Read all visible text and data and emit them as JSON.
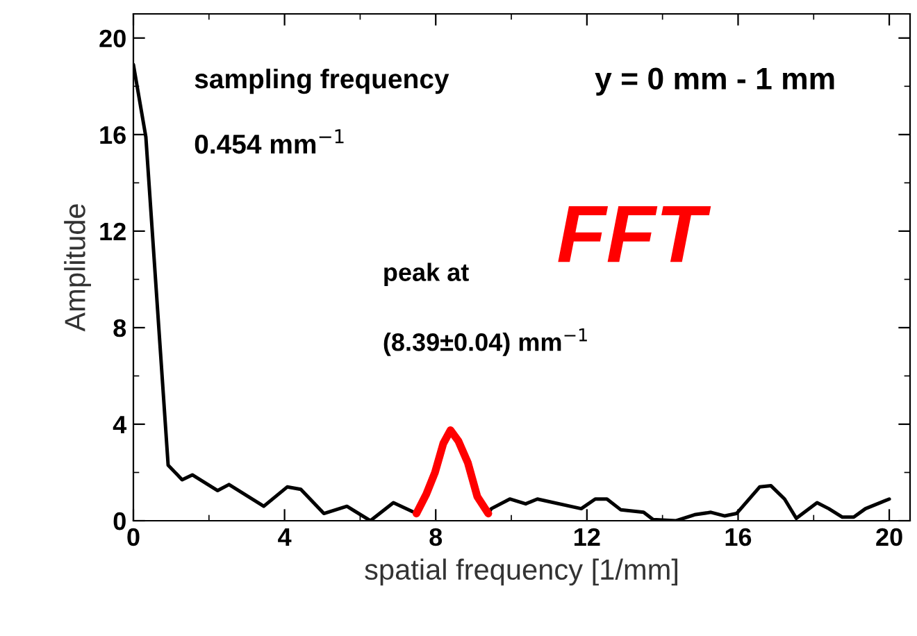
{
  "chart_data": {
    "type": "line",
    "xlabel": "spatial frequency [1/mm]",
    "ylabel": "Amplitude",
    "series": [
      {
        "color": "#000000",
        "x": [
          0,
          0.33,
          0.92,
          1.29,
          1.56,
          2.23,
          2.53,
          3.45,
          4.07,
          4.43,
          5.04,
          5.65,
          6.27,
          6.88,
          7.49,
          null,
          9.39,
          9.47,
          9.96,
          10.38,
          10.69,
          11.85,
          12.22,
          12.53,
          12.9,
          13.5,
          13.75,
          14.36,
          14.85,
          15.28,
          15.65,
          15.96,
          16.57,
          16.87,
          17.23,
          17.54,
          18.09,
          18.4,
          18.76,
          19.06,
          19.37,
          20
        ],
        "values": [
          18.9,
          15.9,
          2.3,
          1.7,
          1.9,
          1.25,
          1.5,
          0.6,
          1.4,
          1.3,
          0.3,
          0.6,
          0,
          0.75,
          0.3,
          null,
          0.3,
          0.5,
          0.9,
          0.7,
          0.9,
          0.5,
          0.9,
          0.9,
          0.45,
          0.35,
          0.05,
          0,
          0.25,
          0.35,
          0.2,
          0.3,
          1.4,
          1.45,
          0.9,
          0.1,
          0.75,
          0.5,
          0.15,
          0.15,
          0.5,
          0.9
        ]
      },
      {
        "color": "#ff0000",
        "x": [
          7.49,
          7.75,
          7.98,
          8.2,
          8.39,
          8.6,
          8.85,
          9.1,
          9.39
        ],
        "values": [
          0.3,
          1.1,
          2.0,
          3.2,
          3.75,
          3.3,
          2.4,
          1.0,
          0.3
        ]
      }
    ],
    "xlim": [
      0,
      20.55
    ],
    "ylim": [
      0,
      21
    ],
    "xticks": [
      0,
      4,
      8,
      12,
      16,
      20
    ],
    "yticks": [
      0,
      4,
      8,
      12,
      16,
      20
    ],
    "grid": false,
    "legend": false,
    "marker": "none",
    "line_style": "solid",
    "annotations": [
      "sampling frequency",
      "0.454 mm$^{−1}$",
      "y = 0 mm - 1 mm",
      "FFT",
      "peak at",
      "(8.39±0.04) mm$^{−1}$"
    ]
  }
}
